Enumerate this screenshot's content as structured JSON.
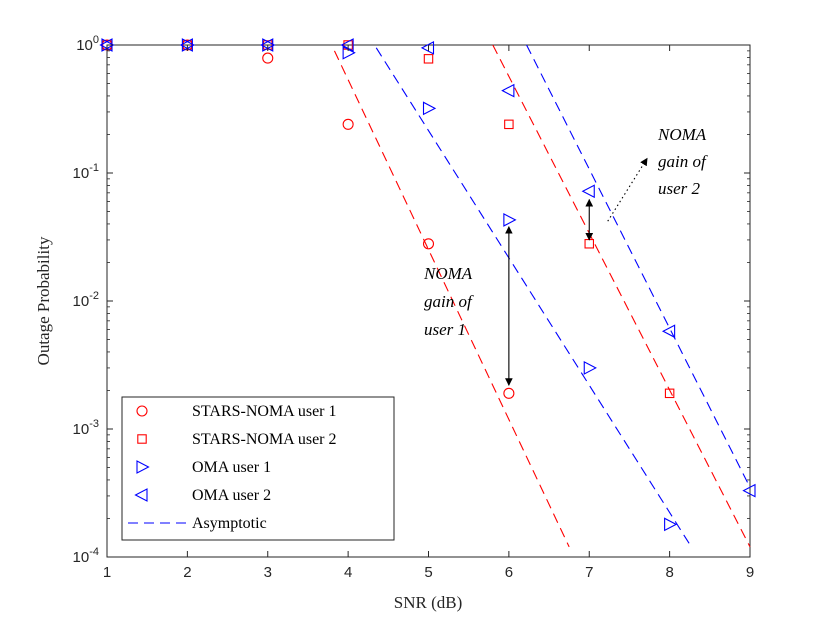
{
  "chart_data": {
    "type": "scatter",
    "title": "",
    "xlabel": "SNR (dB)",
    "ylabel": "Outage Probability",
    "xlim": [
      1,
      9
    ],
    "ylim": [
      0.0001,
      1
    ],
    "yscale": "log",
    "grid": false,
    "legend_position": "bottom-left",
    "x_ticks": [
      "1",
      "2",
      "3",
      "4",
      "5",
      "6",
      "7",
      "8",
      "9"
    ],
    "y_ticks": [
      {
        "base": "10",
        "exp": "0",
        "value": 1
      },
      {
        "base": "10",
        "exp": "-1",
        "value": 0.1
      },
      {
        "base": "10",
        "exp": "-2",
        "value": 0.01
      },
      {
        "base": "10",
        "exp": "-3",
        "value": 0.001
      },
      {
        "base": "10",
        "exp": "-4",
        "value": 0.0001
      }
    ],
    "series": [
      {
        "name": "STARS-NOMA user 1",
        "marker": "circle",
        "color": "#ff0000",
        "points": [
          [
            1,
            1.0
          ],
          [
            2,
            1.0
          ],
          [
            3,
            0.79
          ],
          [
            4,
            0.24
          ],
          [
            5,
            0.028
          ],
          [
            6,
            0.0019
          ]
        ]
      },
      {
        "name": "STARS-NOMA user 2",
        "marker": "square",
        "color": "#ff0000",
        "points": [
          [
            1,
            1.0
          ],
          [
            2,
            1.0
          ],
          [
            3,
            1.0
          ],
          [
            4,
            1.0
          ],
          [
            5,
            0.78
          ],
          [
            6,
            0.24
          ],
          [
            7,
            0.028
          ],
          [
            8,
            0.0019
          ]
        ]
      },
      {
        "name": "OMA user 1",
        "marker": "triangle-right",
        "color": "#0000ff",
        "points": [
          [
            1,
            1.0
          ],
          [
            2,
            1.0
          ],
          [
            3,
            1.0
          ],
          [
            4,
            0.87
          ],
          [
            5,
            0.32
          ],
          [
            6,
            0.043
          ],
          [
            7,
            0.003
          ],
          [
            8,
            0.00018
          ]
        ]
      },
      {
        "name": "OMA user 2",
        "marker": "triangle-left",
        "color": "#0000ff",
        "points": [
          [
            1,
            1.0
          ],
          [
            2,
            1.0
          ],
          [
            3,
            1.0
          ],
          [
            4,
            1.0
          ],
          [
            5,
            0.95
          ],
          [
            6,
            0.44
          ],
          [
            7,
            0.072
          ],
          [
            8,
            0.0058
          ],
          [
            9,
            0.00033
          ]
        ]
      }
    ],
    "asymptotic_lines": [
      {
        "name": "Asymptotic",
        "color": "#ff0000",
        "from": [
          3.83,
          0.9
        ],
        "to": [
          6.75,
          0.00012
        ]
      },
      {
        "name": "Asymptotic",
        "color": "#0000ff",
        "from": [
          4.35,
          0.95
        ],
        "to": [
          8.27,
          0.00012
        ]
      },
      {
        "name": "Asymptotic",
        "color": "#ff0000",
        "from": [
          5.8,
          1.0
        ],
        "to": [
          9.0,
          0.00012
        ]
      },
      {
        "name": "Asymptotic",
        "color": "#0000ff",
        "from": [
          6.22,
          1.0
        ],
        "to": [
          9.0,
          0.00035
        ]
      }
    ],
    "legend": [
      {
        "label": "STARS-NOMA user 1",
        "marker": "circle",
        "color": "#ff0000"
      },
      {
        "label": "STARS-NOMA user 2",
        "marker": "square",
        "color": "#ff0000"
      },
      {
        "label": "OMA user 1",
        "marker": "triangle-right",
        "color": "#0000ff"
      },
      {
        "label": "OMA user 2",
        "marker": "triangle-left",
        "color": "#0000ff"
      },
      {
        "label": "Asymptotic",
        "marker": "dashed-line",
        "color": "#0000ff"
      }
    ],
    "annotations": [
      {
        "lines": [
          "NOMA",
          "gain of",
          "user 1"
        ],
        "arrow": {
          "x": 6.0,
          "y_from": 0.038,
          "y_to": 0.0022,
          "double_headed": true
        }
      },
      {
        "lines": [
          "NOMA",
          "gain of",
          "user 2"
        ],
        "arrow": {
          "x": 7.0,
          "y_from": 0.062,
          "y_to": 0.03,
          "double_headed": true
        },
        "pointer": {
          "from": [
            7.23,
            0.042
          ],
          "to": [
            7.72,
            0.13
          ],
          "style": "dotted"
        }
      }
    ]
  }
}
